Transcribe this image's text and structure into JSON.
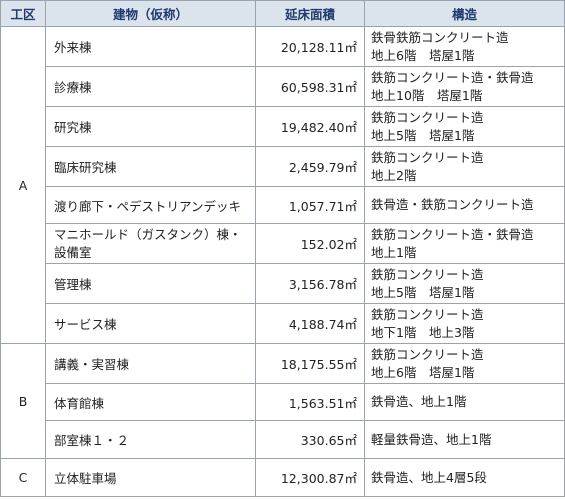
{
  "headers": {
    "zone": "工区",
    "name": "建物（仮称）",
    "area": "延床面積",
    "structure": "構造"
  },
  "area_unit": "㎡",
  "zones": {
    "a": "A",
    "b": "B",
    "c": "C"
  },
  "rows": [
    {
      "name": "外来棟",
      "area": "20,128.11",
      "s1": "鉄骨鉄筋コンクリート造",
      "s2": "地上6階　塔屋1階"
    },
    {
      "name": "診療棟",
      "area": "60,598.31",
      "s1": "鉄筋コンクリート造・鉄骨造",
      "s2": "地上10階　塔屋1階"
    },
    {
      "name": "研究棟",
      "area": "19,482.40",
      "s1": "鉄筋コンクリート造",
      "s2": "地上5階　塔屋1階"
    },
    {
      "name": "臨床研究棟",
      "area": "2,459.79",
      "s1": "鉄筋コンクリート造",
      "s2": "地上2階"
    },
    {
      "name": "渡り廊下・ペデストリアンデッキ",
      "area": "1,057.71",
      "s1": "鉄骨造・鉄筋コンクリート造",
      "s2": ""
    },
    {
      "name": "マニホールド（ガスタンク）棟・",
      "name2": "設備室",
      "area": "152.02",
      "s1": "鉄筋コンクリート造・鉄骨造",
      "s2": "地上1階"
    },
    {
      "name": "管理棟",
      "area": "3,156.78",
      "s1": "鉄筋コンクリート造",
      "s2": "地上5階　塔屋1階"
    },
    {
      "name": "サービス棟",
      "area": "4,188.74",
      "s1": "鉄筋コンクリート造",
      "s2": "地下1階　地上3階"
    },
    {
      "name": "講義・実習棟",
      "area": "18,175.55",
      "s1": "鉄筋コンクリート造",
      "s2": "地上6階　塔屋1階"
    },
    {
      "name": "体育館棟",
      "area": "1,563.51",
      "s1": "鉄骨造、地上1階",
      "s2": ""
    },
    {
      "name": "部室棟１・２",
      "area": "330.65",
      "s1": "軽量鉄骨造、地上1階",
      "s2": ""
    },
    {
      "name": "立体駐車場",
      "area": "12,300.87",
      "s1": "鉄骨造、地上4層5段",
      "s2": ""
    }
  ]
}
